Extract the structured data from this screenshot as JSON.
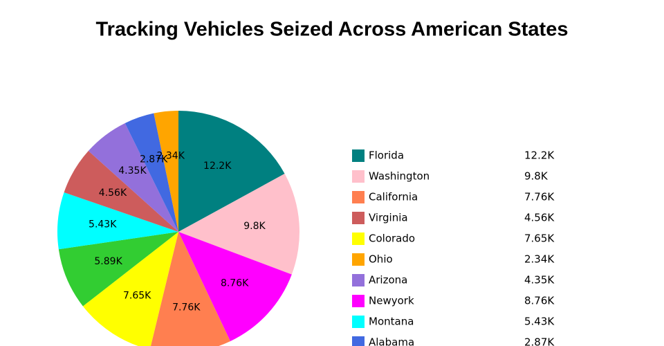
{
  "chart_data": {
    "type": "pie",
    "title": "Tracking Vehicles Seized Across American States",
    "categories": [
      "Florida",
      "Washington",
      "California",
      "Virginia",
      "Colorado",
      "Ohio",
      "Arizona",
      "Newyork",
      "Montana",
      "Alabama",
      null
    ],
    "values": [
      12200,
      9800,
      7760,
      4560,
      7650,
      2340,
      4350,
      8760,
      5430,
      2870,
      5890
    ],
    "value_labels": [
      "12.2K",
      "9.8K",
      "7.76K",
      "4.56K",
      "7.65K",
      "2.34K",
      "4.35K",
      "8.76K",
      "5.43K",
      "2.87K",
      "5.89K"
    ],
    "colors": [
      "#008080",
      "#ffc0cb",
      "#ff7f50",
      "#cd5c5c",
      "#ffff00",
      "#ffa500",
      "#9370db",
      "#ff00ff",
      "#00ffff",
      "#4169e1",
      "#32cd32"
    ],
    "sort": true,
    "legend": "right"
  }
}
